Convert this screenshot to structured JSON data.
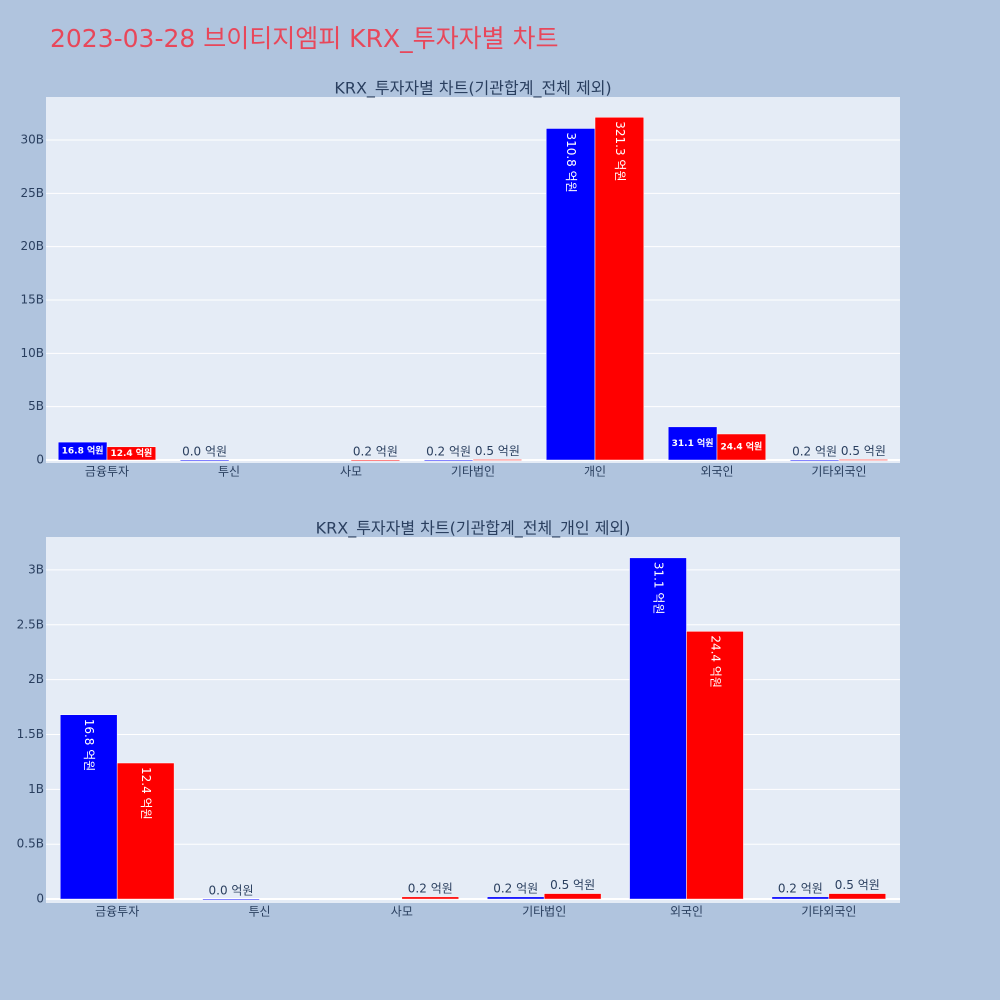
{
  "title": "2023-03-28 브이티지엠피 KRX_투자자별 차트",
  "chart_data": [
    {
      "type": "bar",
      "title": "KRX_투자자별 차트(기관합계_전체 제외)",
      "categories": [
        "금융투자",
        "투신",
        "사모",
        "기타법인",
        "개인",
        "외국인",
        "기타외국인"
      ],
      "series": [
        {
          "color": "#0000ff",
          "values": [
            1680000000,
            0,
            null,
            20000000,
            31080000000,
            3110000000,
            20000000
          ],
          "value_labels": [
            "16.8 억원",
            "0.0 억원",
            null,
            "0.2 억원",
            "310.8 억원",
            "31.1 억원",
            "0.2 억원"
          ]
        },
        {
          "color": "#ff0000",
          "values": [
            1240000000,
            null,
            20000000,
            50000000,
            32130000000,
            2440000000,
            50000000
          ],
          "value_labels": [
            "12.4 억원",
            null,
            "0.2 억원",
            "0.5 억원",
            "321.3 억원",
            "24.4 억원",
            "0.5 억원"
          ]
        }
      ],
      "ylim": [
        -280000000,
        34030000000
      ],
      "yticks": [
        0,
        {
          "value": 5000000000,
          "label": "5B"
        },
        {
          "value": 10000000000,
          "label": "10B"
        },
        {
          "value": 15000000000,
          "label": "15B"
        },
        {
          "value": 20000000000,
          "label": "20B"
        },
        {
          "value": 25000000000,
          "label": "25B"
        },
        {
          "value": 30000000000,
          "label": "30B"
        }
      ],
      "grid": true
    },
    {
      "type": "bar",
      "title": "KRX_투자자별 차트(기관합계_전체_개인 제외)",
      "categories": [
        "금융투자",
        "투신",
        "사모",
        "기타법인",
        "외국인",
        "기타외국인"
      ],
      "series": [
        {
          "color": "#0000ff",
          "values": [
            1680000000,
            0,
            null,
            20000000,
            3110000000,
            20000000
          ],
          "value_labels": [
            "16.8 억원",
            "0.0 억원",
            null,
            "0.2 억원",
            "31.1 억원",
            "0.2 억원"
          ]
        },
        {
          "color": "#ff0000",
          "values": [
            1240000000,
            null,
            20000000,
            50000000,
            2440000000,
            50000000
          ],
          "value_labels": [
            "12.4 억원",
            null,
            "0.2 억원",
            "0.5 억원",
            "24.4 억원",
            "0.5 억원"
          ]
        }
      ],
      "ylim": [
        -36000000,
        3300000000
      ],
      "yticks": [
        0,
        {
          "value": 500000000,
          "label": "0.5B"
        },
        {
          "value": 1000000000,
          "label": "1B"
        },
        {
          "value": 1500000000,
          "label": "1.5B"
        },
        {
          "value": 2000000000,
          "label": "2B"
        },
        {
          "value": 2500000000,
          "label": "2.5B"
        },
        {
          "value": 3000000000,
          "label": "3B"
        }
      ],
      "grid": true
    }
  ]
}
